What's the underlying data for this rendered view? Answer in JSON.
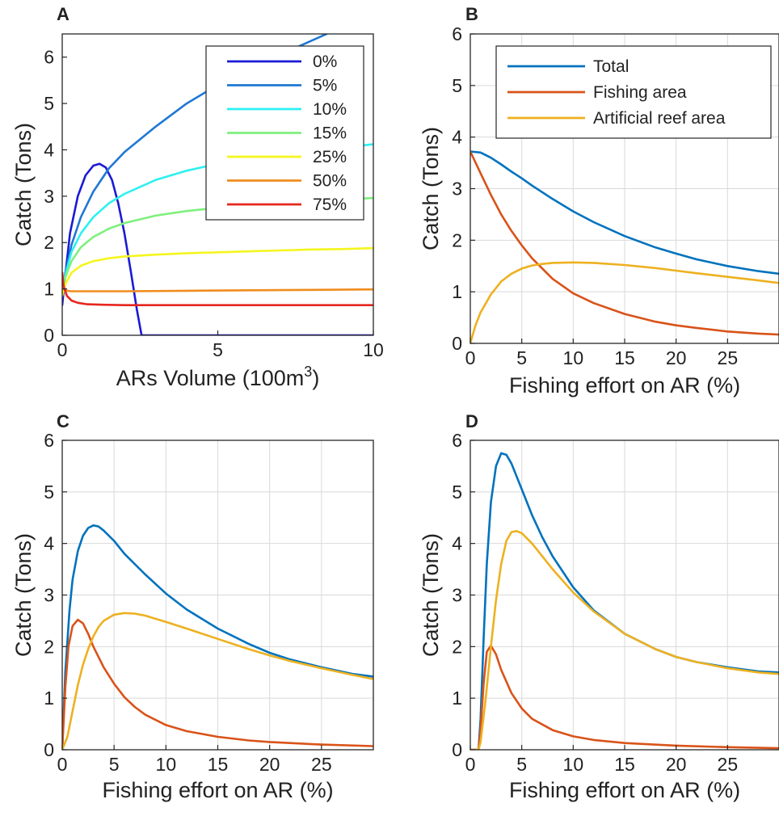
{
  "colors": {
    "total": "#0072BD",
    "fishing": "#D95319",
    "reef": "#EDB120",
    "p0": "#1a1ad6",
    "p5": "#1f78d4",
    "p10": "#2ef0f0",
    "p15": "#7ef07e",
    "p25": "#f5f51e",
    "p50": "#f08c1e",
    "p75": "#e6261e"
  },
  "chart_data": [
    {
      "type": "line",
      "panel": "A",
      "xlabel": "ARs Volume (100m",
      "xlabel_sup": "3",
      "xlabel_end": ")",
      "ylabel": "Catch (Tons)",
      "xlim": [
        0,
        10
      ],
      "ylim": [
        0,
        6.5
      ],
      "xticks": [
        "0",
        "5",
        "10"
      ],
      "yticks": [
        "0",
        "1",
        "2",
        "3",
        "4",
        "5",
        "6"
      ],
      "xtick_values": [
        0,
        5,
        10
      ],
      "ytick_values": [
        0,
        1,
        2,
        3,
        4,
        5,
        6
      ],
      "grid": false,
      "legend_position": "top-right",
      "series": [
        {
          "name": "0%",
          "color_key": "p0",
          "x": [
            0,
            0.1,
            0.25,
            0.5,
            0.75,
            1.0,
            1.2,
            1.4,
            1.6,
            1.8,
            2.0,
            2.2,
            2.4,
            2.55,
            2.6,
            5,
            10
          ],
          "y": [
            0.65,
            1.3,
            2.2,
            3.0,
            3.45,
            3.66,
            3.7,
            3.62,
            3.35,
            2.85,
            2.2,
            1.4,
            0.55,
            0.0,
            0,
            0,
            0
          ]
        },
        {
          "name": "5%",
          "color_key": "p5",
          "x": [
            0,
            0.1,
            0.3,
            0.6,
            1.0,
            1.5,
            2,
            3,
            4,
            5,
            6,
            7,
            8,
            8.5
          ],
          "y": [
            0.9,
            1.35,
            1.95,
            2.55,
            3.1,
            3.6,
            3.95,
            4.5,
            5.0,
            5.4,
            5.75,
            6.05,
            6.35,
            6.5
          ]
        },
        {
          "name": "10%",
          "color_key": "p10",
          "x": [
            0,
            0.1,
            0.3,
            0.6,
            1.0,
            1.5,
            2,
            3,
            4,
            5,
            6,
            7,
            8,
            9,
            10
          ],
          "y": [
            0.9,
            1.3,
            1.8,
            2.2,
            2.55,
            2.85,
            3.05,
            3.35,
            3.55,
            3.7,
            3.8,
            3.9,
            3.98,
            4.05,
            4.12
          ]
        },
        {
          "name": "15%",
          "color_key": "p15",
          "x": [
            0,
            0.1,
            0.3,
            0.6,
            1.0,
            1.5,
            2,
            3,
            4,
            5,
            6,
            7,
            8,
            9,
            10
          ],
          "y": [
            0.9,
            1.25,
            1.6,
            1.9,
            2.12,
            2.3,
            2.42,
            2.58,
            2.68,
            2.75,
            2.8,
            2.85,
            2.9,
            2.93,
            2.96
          ]
        },
        {
          "name": "25%",
          "color_key": "p25",
          "x": [
            0,
            0.1,
            0.3,
            0.6,
            1.0,
            1.5,
            2,
            3,
            4,
            5,
            6,
            7,
            8,
            9,
            10
          ],
          "y": [
            0.85,
            1.1,
            1.35,
            1.5,
            1.6,
            1.66,
            1.7,
            1.74,
            1.77,
            1.79,
            1.81,
            1.83,
            1.85,
            1.86,
            1.88
          ]
        },
        {
          "name": "50%",
          "color_key": "p50",
          "x": [
            0,
            0.05,
            0.15,
            0.3,
            0.6,
            1,
            2,
            4,
            6,
            8,
            10
          ],
          "y": [
            1.05,
            1.0,
            0.96,
            0.95,
            0.95,
            0.95,
            0.95,
            0.96,
            0.97,
            0.98,
            0.99
          ]
        },
        {
          "name": "75%",
          "color_key": "p75",
          "x": [
            0,
            0.05,
            0.15,
            0.3,
            0.5,
            0.8,
            1.2,
            2,
            4,
            6,
            8,
            10
          ],
          "y": [
            1.35,
            1.05,
            0.85,
            0.75,
            0.7,
            0.67,
            0.66,
            0.65,
            0.65,
            0.65,
            0.65,
            0.65
          ]
        }
      ]
    },
    {
      "type": "line",
      "panel": "B",
      "xlabel": "Fishing effort on AR (%)",
      "ylabel": "Catch (Tons)",
      "xlim": [
        0,
        30
      ],
      "ylim": [
        0,
        6
      ],
      "xticks": [
        "0",
        "5",
        "10",
        "15",
        "20",
        "25"
      ],
      "yticks": [
        "0",
        "1",
        "2",
        "3",
        "4",
        "5",
        "6"
      ],
      "xtick_values": [
        0,
        5,
        10,
        15,
        20,
        25
      ],
      "ytick_values": [
        0,
        1,
        2,
        3,
        4,
        5,
        6
      ],
      "grid": true,
      "legend_position": "top",
      "series": [
        {
          "name": "Total",
          "color_key": "total",
          "x": [
            0,
            1,
            2,
            3,
            4,
            5,
            6,
            8,
            10,
            12,
            15,
            18,
            20,
            22,
            25,
            28,
            30
          ],
          "y": [
            3.72,
            3.7,
            3.6,
            3.47,
            3.33,
            3.2,
            3.06,
            2.8,
            2.56,
            2.35,
            2.08,
            1.86,
            1.74,
            1.63,
            1.5,
            1.4,
            1.35
          ]
        },
        {
          "name": "Fishing area",
          "color_key": "fishing",
          "x": [
            0,
            1,
            2,
            3,
            4,
            5,
            6,
            8,
            10,
            12,
            15,
            18,
            20,
            22,
            25,
            28,
            30
          ],
          "y": [
            3.72,
            3.3,
            2.88,
            2.5,
            2.18,
            1.9,
            1.65,
            1.25,
            0.97,
            0.78,
            0.57,
            0.42,
            0.35,
            0.3,
            0.23,
            0.19,
            0.17
          ]
        },
        {
          "name": "Artificial reef area",
          "color_key": "reef",
          "x": [
            0,
            0.5,
            1,
            2,
            3,
            4,
            5,
            6,
            7,
            8,
            10,
            12,
            15,
            18,
            20,
            22,
            25,
            28,
            30
          ],
          "y": [
            0,
            0.35,
            0.6,
            0.95,
            1.2,
            1.35,
            1.45,
            1.51,
            1.54,
            1.56,
            1.57,
            1.56,
            1.52,
            1.46,
            1.41,
            1.36,
            1.29,
            1.22,
            1.17
          ]
        }
      ]
    },
    {
      "type": "line",
      "panel": "C",
      "xlabel": "Fishing effort on AR (%)",
      "ylabel": "Catch (Tons)",
      "xlim": [
        0,
        30
      ],
      "ylim": [
        0,
        6
      ],
      "xticks": [
        "0",
        "5",
        "10",
        "15",
        "20",
        "25"
      ],
      "yticks": [
        "0",
        "1",
        "2",
        "3",
        "4",
        "5",
        "6"
      ],
      "xtick_values": [
        0,
        5,
        10,
        15,
        20,
        25
      ],
      "ytick_values": [
        0,
        1,
        2,
        3,
        4,
        5,
        6
      ],
      "grid": true,
      "series": [
        {
          "name": "",
          "color_key": "total",
          "x": [
            0,
            0.3,
            0.7,
            1,
            1.5,
            2,
            2.5,
            3,
            3.5,
            4,
            5,
            6,
            8,
            10,
            12,
            15,
            18,
            20,
            22,
            25,
            28,
            30
          ],
          "y": [
            0,
            1.5,
            2.7,
            3.3,
            3.85,
            4.15,
            4.3,
            4.35,
            4.33,
            4.25,
            4.05,
            3.8,
            3.4,
            3.03,
            2.72,
            2.35,
            2.05,
            1.88,
            1.75,
            1.6,
            1.47,
            1.42
          ]
        },
        {
          "name": "",
          "color_key": "fishing",
          "x": [
            0,
            0.3,
            0.6,
            1,
            1.5,
            2,
            2.5,
            3,
            4,
            5,
            6,
            7,
            8,
            10,
            12,
            15,
            18,
            20,
            25,
            30
          ],
          "y": [
            0,
            1.2,
            2.0,
            2.4,
            2.52,
            2.45,
            2.25,
            2.0,
            1.6,
            1.28,
            1.02,
            0.83,
            0.68,
            0.48,
            0.36,
            0.25,
            0.18,
            0.15,
            0.1,
            0.07
          ]
        },
        {
          "name": "",
          "color_key": "reef",
          "x": [
            0,
            0.5,
            1,
            1.5,
            2,
            2.5,
            3,
            3.5,
            4,
            5,
            6,
            7,
            8,
            10,
            12,
            15,
            18,
            20,
            22,
            25,
            28,
            30
          ],
          "y": [
            0,
            0.25,
            0.75,
            1.25,
            1.65,
            1.95,
            2.2,
            2.38,
            2.5,
            2.62,
            2.65,
            2.64,
            2.6,
            2.48,
            2.35,
            2.15,
            1.95,
            1.83,
            1.72,
            1.58,
            1.45,
            1.37
          ]
        }
      ]
    },
    {
      "type": "line",
      "panel": "D",
      "xlabel": "Fishing effort on AR (%)",
      "ylabel": "Catch (Tons)",
      "xlim": [
        0,
        30
      ],
      "ylim": [
        0,
        6
      ],
      "xticks": [
        "0",
        "5",
        "10",
        "15",
        "20",
        "25"
      ],
      "yticks": [
        "0",
        "1",
        "2",
        "3",
        "4",
        "5",
        "6"
      ],
      "xtick_values": [
        0,
        5,
        10,
        15,
        20,
        25
      ],
      "ytick_values": [
        0,
        1,
        2,
        3,
        4,
        5,
        6
      ],
      "grid": true,
      "series": [
        {
          "name": "",
          "color_key": "total",
          "x": [
            0,
            0.8,
            1,
            1.3,
            1.6,
            2,
            2.5,
            3,
            3.5,
            4,
            5,
            6,
            7,
            8,
            10,
            12,
            15,
            18,
            20,
            22,
            25,
            28,
            30
          ],
          "y": [
            0,
            0,
            0.6,
            2.2,
            3.6,
            4.8,
            5.5,
            5.75,
            5.72,
            5.55,
            5.05,
            4.55,
            4.12,
            3.75,
            3.15,
            2.7,
            2.25,
            1.95,
            1.8,
            1.7,
            1.6,
            1.52,
            1.5
          ]
        },
        {
          "name": "",
          "color_key": "fishing",
          "x": [
            0,
            0.8,
            1,
            1.3,
            1.6,
            2,
            2.5,
            3,
            4,
            5,
            6,
            8,
            10,
            12,
            15,
            20,
            25,
            30
          ],
          "y": [
            0,
            0,
            0.4,
            1.3,
            1.9,
            2.02,
            1.85,
            1.55,
            1.1,
            0.8,
            0.6,
            0.38,
            0.26,
            0.19,
            0.13,
            0.08,
            0.05,
            0.03
          ]
        },
        {
          "name": "",
          "color_key": "reef",
          "x": [
            0,
            0.8,
            1,
            1.5,
            2,
            2.5,
            3,
            3.5,
            4,
            4.5,
            5,
            6,
            7,
            8,
            10,
            12,
            15,
            18,
            20,
            22,
            25,
            28,
            30
          ],
          "y": [
            0,
            0,
            0.15,
            1.0,
            2.0,
            2.9,
            3.6,
            4.05,
            4.22,
            4.24,
            4.2,
            4.0,
            3.75,
            3.5,
            3.05,
            2.68,
            2.25,
            1.95,
            1.8,
            1.7,
            1.58,
            1.5,
            1.47
          ]
        }
      ]
    }
  ]
}
